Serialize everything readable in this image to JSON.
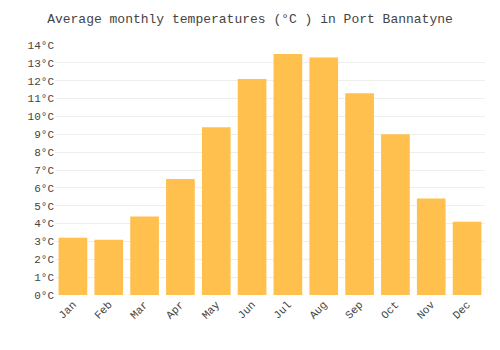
{
  "chart_data": {
    "type": "bar",
    "title": "Average monthly temperatures (°C ) in Port Bannatyne",
    "categories": [
      "Jan",
      "Feb",
      "Mar",
      "Apr",
      "May",
      "Jun",
      "Jul",
      "Aug",
      "Sep",
      "Oct",
      "Nov",
      "Dec"
    ],
    "values": [
      3.2,
      3.1,
      4.4,
      6.5,
      9.4,
      12.1,
      13.5,
      13.3,
      11.3,
      9.0,
      5.4,
      4.1
    ],
    "color": "#FFC04D",
    "ylim": [
      0,
      14
    ],
    "yticks": [
      {
        "value": 0,
        "label": "0°C"
      },
      {
        "value": 1,
        "label": "1°C"
      },
      {
        "value": 2,
        "label": "2°C"
      },
      {
        "value": 3,
        "label": "3°C"
      },
      {
        "value": 4,
        "label": "4°C"
      },
      {
        "value": 5,
        "label": "5°C"
      },
      {
        "value": 6,
        "label": "6°C"
      },
      {
        "value": 7,
        "label": "7°C"
      },
      {
        "value": 8,
        "label": "8°C"
      },
      {
        "value": 9,
        "label": "9°C"
      },
      {
        "value": 10,
        "label": "10°C"
      },
      {
        "value": 11,
        "label": "11°C"
      },
      {
        "value": 12,
        "label": "12°C"
      },
      {
        "value": 13,
        "label": "13°C"
      },
      {
        "value": 14,
        "label": "14°C"
      }
    ],
    "grid": true
  }
}
